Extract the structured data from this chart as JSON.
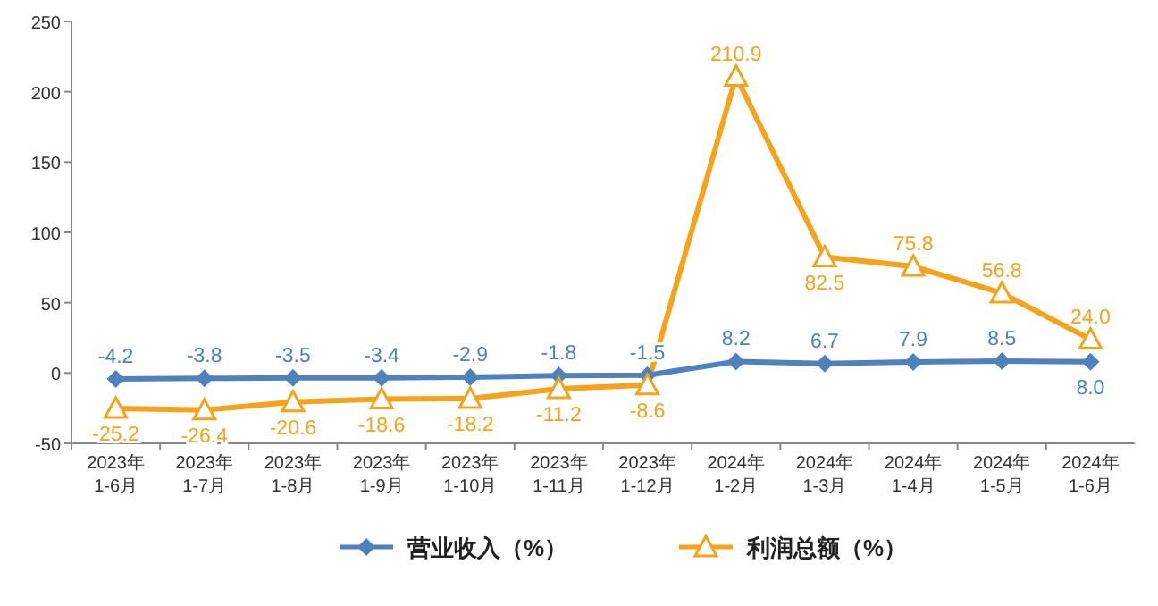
{
  "chart_data": {
    "type": "line",
    "categories": [
      "2023年\n1-6月",
      "2023年\n1-7月",
      "2023年\n1-8月",
      "2023年\n1-9月",
      "2023年\n1-10月",
      "2023年\n1-11月",
      "2023年\n1-12月",
      "2024年\n1-2月",
      "2024年\n1-3月",
      "2024年\n1-4月",
      "2024年\n1-5月",
      "2024年\n1-6月"
    ],
    "series": [
      {
        "name": "营业收入（%）",
        "color": "#4f81bd",
        "marker": "diamond",
        "values": [
          -4.2,
          -3.8,
          -3.5,
          -3.4,
          -2.9,
          -1.8,
          -1.5,
          8.2,
          6.7,
          7.9,
          8.5,
          8.0
        ],
        "value_labels": [
          "-4.2",
          "-3.8",
          "-3.5",
          "-3.4",
          "-2.9",
          "-1.8",
          "-1.5",
          "8.2",
          "6.7",
          "7.9",
          "8.5",
          "8.0"
        ]
      },
      {
        "name": "利润总额（%）",
        "color": "#f5a31a",
        "marker": "triangle",
        "values": [
          -25.2,
          -26.4,
          -20.6,
          -18.6,
          -18.2,
          -11.2,
          -8.6,
          210.9,
          82.5,
          75.8,
          56.8,
          24.0
        ],
        "value_labels": [
          "-25.2",
          "-26.4",
          "-20.6",
          "-18.6",
          "-18.2",
          "-11.2",
          "-8.6",
          "210.9",
          "82.5",
          "75.8",
          "56.8",
          "24.0"
        ]
      }
    ],
    "ylim": [
      -50,
      250
    ],
    "yticks": [
      -50,
      0,
      50,
      100,
      150,
      200,
      250
    ],
    "grid": false,
    "legend": "bottom"
  }
}
